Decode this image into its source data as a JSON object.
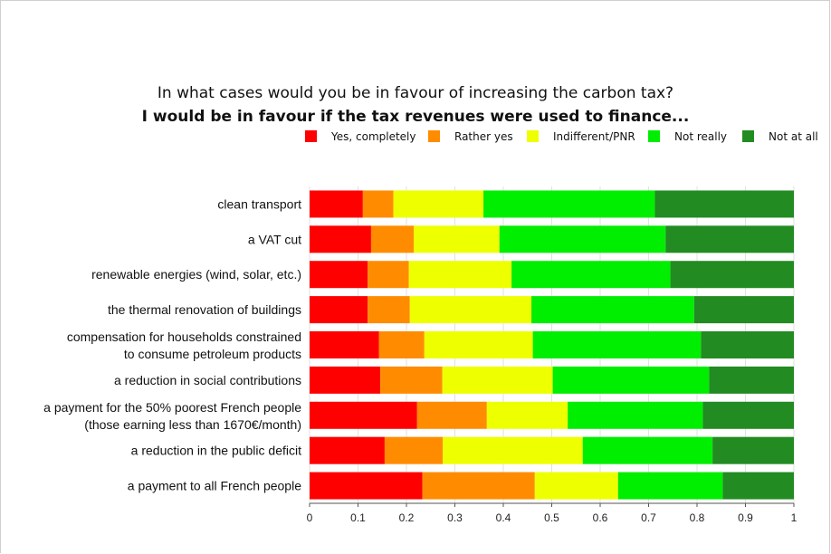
{
  "title_line1": "In what cases would you be in favour of increasing the carbon tax?",
  "title_line2": "I would be in favour if the tax revenues were used to finance...",
  "chart_data": {
    "type": "bar",
    "orientation": "horizontal",
    "stacked": true,
    "title": "In what cases would you be in favour of increasing the carbon tax? I would be in favour if the tax revenues were used to finance...",
    "xlim": [
      0,
      1
    ],
    "x_ticks": [
      "0",
      "0.1",
      "0.2",
      "0.3",
      "0.4",
      "0.5",
      "0.6",
      "0.7",
      "0.8",
      "0.9",
      "1"
    ],
    "grid": "vertical",
    "legend_position": "top-right",
    "categories": [
      [
        "clean transport"
      ],
      [
        "a VAT cut"
      ],
      [
        "renewable energies (wind, solar, etc.)"
      ],
      [
        "the thermal renovation of buildings"
      ],
      [
        "compensation for households constrained",
        "to consume petroleum products"
      ],
      [
        "a reduction in social contributions"
      ],
      [
        "a payment for the 50% poorest French people",
        "(those earning less than 1670€/month)"
      ],
      [
        "a reduction in the public deficit"
      ],
      [
        "a payment to all French people"
      ]
    ],
    "series": [
      {
        "name": "Yes, completely",
        "color": "#ff0000",
        "values": [
          0.11,
          0.127,
          0.12,
          0.12,
          0.143,
          0.146,
          0.222,
          0.155,
          0.233
        ]
      },
      {
        "name": "Rather yes",
        "color": "#ff8c00",
        "values": [
          0.063,
          0.088,
          0.085,
          0.087,
          0.094,
          0.128,
          0.144,
          0.12,
          0.232
        ]
      },
      {
        "name": "Indifferent/PNR",
        "color": "#eeff00",
        "values": [
          0.186,
          0.177,
          0.212,
          0.251,
          0.224,
          0.228,
          0.167,
          0.289,
          0.172
        ]
      },
      {
        "name": "Not really",
        "color": "#00ee00",
        "values": [
          0.354,
          0.343,
          0.328,
          0.336,
          0.347,
          0.323,
          0.279,
          0.268,
          0.216
        ]
      },
      {
        "name": "Not at all",
        "color": "#228b22",
        "values": [
          0.287,
          0.265,
          0.255,
          0.206,
          0.192,
          0.175,
          0.188,
          0.168,
          0.147
        ]
      }
    ]
  }
}
